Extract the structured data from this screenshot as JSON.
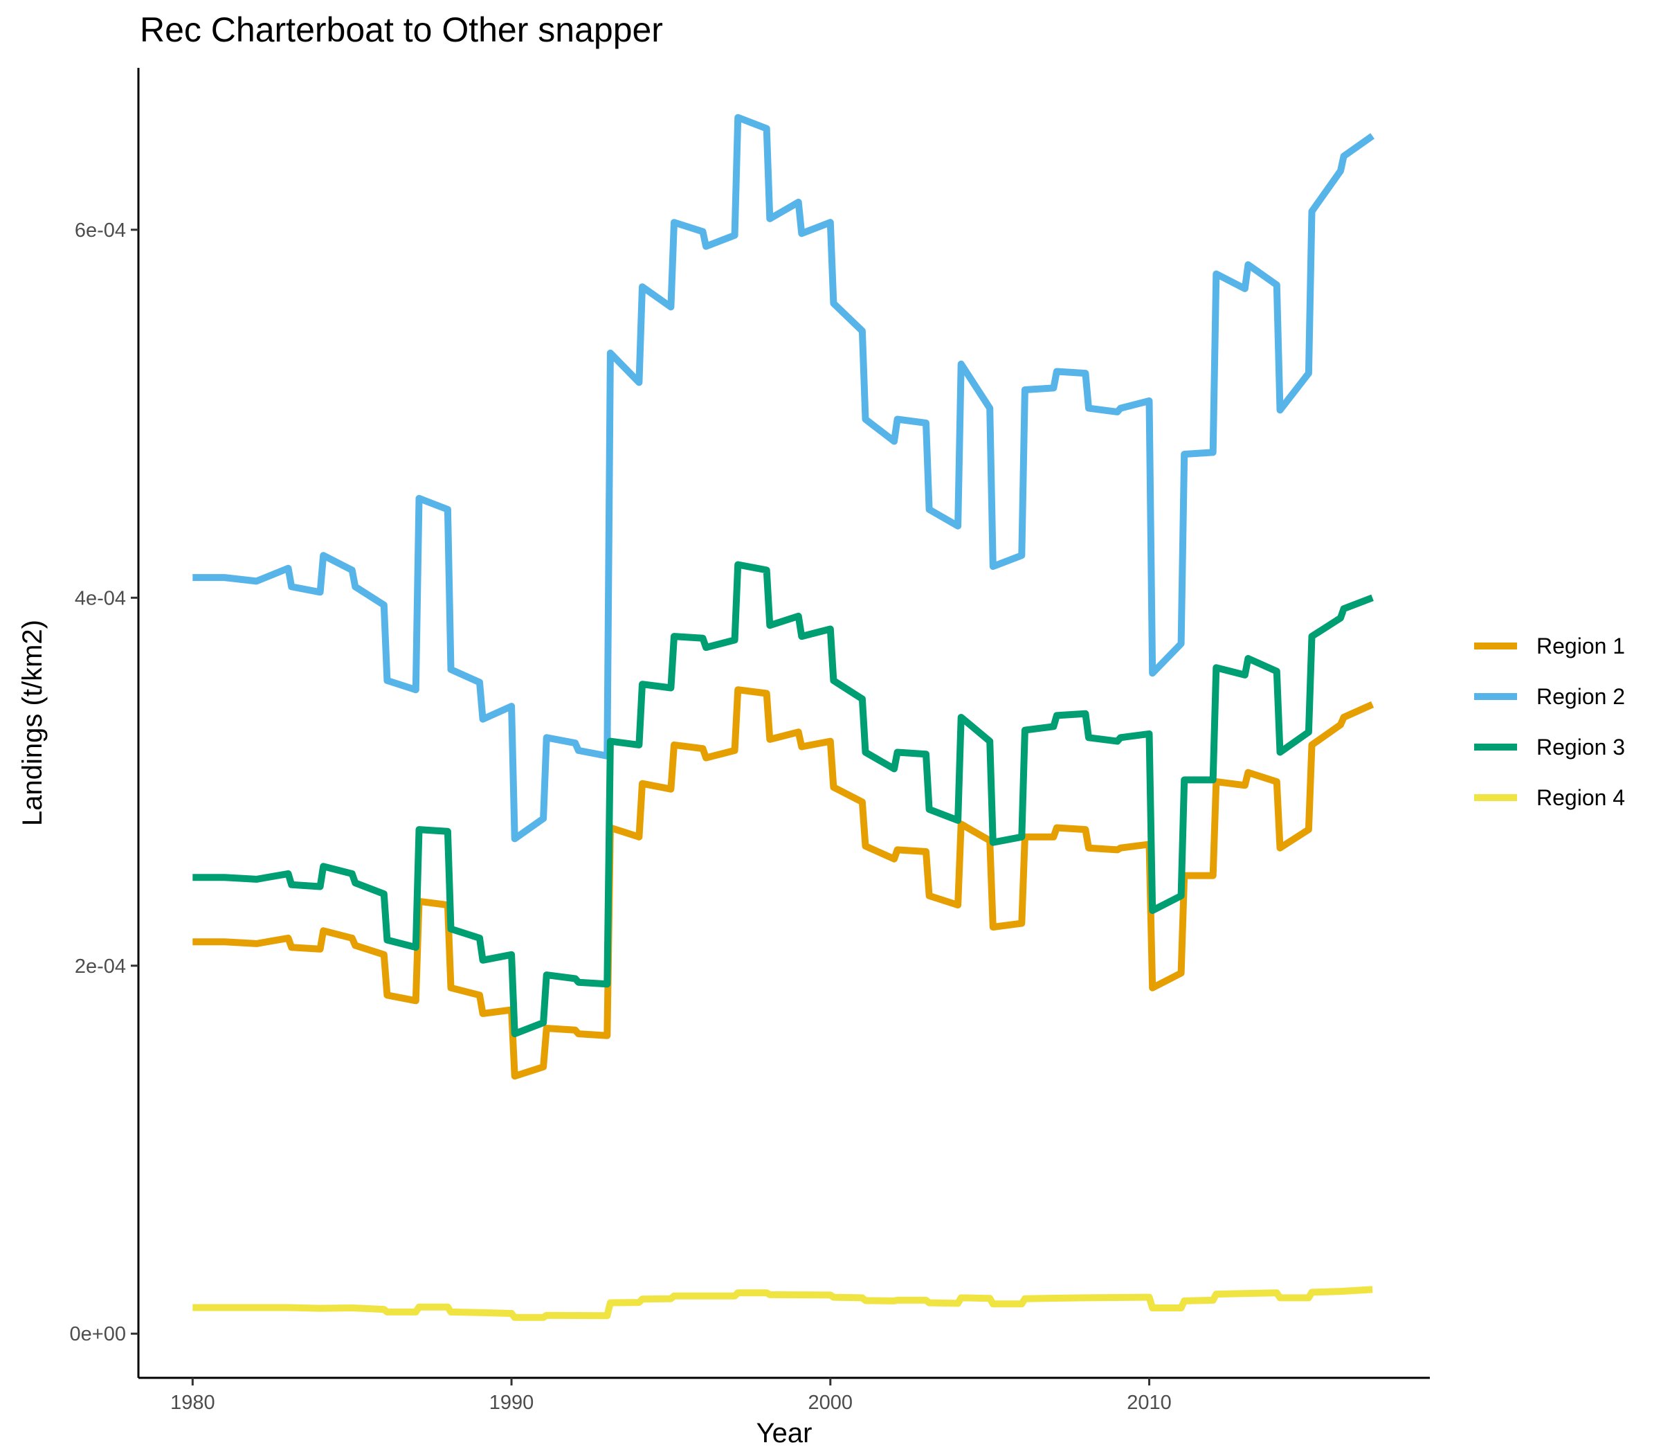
{
  "chart_data": {
    "type": "line",
    "title": "Rec Charterboat to Other snapper",
    "xlabel": "Year",
    "ylabel": "Landings (t/km2)",
    "xlim": [
      1978.3,
      2018.8
    ],
    "ylim": [
      -2.4e-05,
      0.000688
    ],
    "x_ticks": [
      1980,
      1990,
      2000,
      2010
    ],
    "x_tick_labels": [
      "1980",
      "1990",
      "2000",
      "2010"
    ],
    "y_ticks": [
      0,
      0.0002,
      0.0004,
      0.0006
    ],
    "y_tick_labels": [
      "0e+00",
      "2e-04",
      "4e-04",
      "6e-04"
    ],
    "grid": false,
    "legend_position": "right",
    "series": [
      {
        "name": "Region 1",
        "color": "#E69F00",
        "points": [
          [
            1980,
            0.000213
          ],
          [
            1981,
            0.000213
          ],
          [
            1982,
            0.000212
          ],
          [
            1983,
            0.000215
          ],
          [
            1983.1,
            0.00021
          ],
          [
            1984,
            0.000209
          ],
          [
            1984.1,
            0.000219
          ],
          [
            1985,
            0.000215
          ],
          [
            1985.1,
            0.000211
          ],
          [
            1986,
            0.000206
          ],
          [
            1986.1,
            0.000184
          ],
          [
            1987,
            0.000181
          ],
          [
            1987.1,
            0.000235
          ],
          [
            1988,
            0.000233
          ],
          [
            1988.1,
            0.000188
          ],
          [
            1989,
            0.000184
          ],
          [
            1989.1,
            0.000174
          ],
          [
            1990,
            0.000176
          ],
          [
            1990.1,
            0.00014
          ],
          [
            1991,
            0.000145
          ],
          [
            1991.1,
            0.000166
          ],
          [
            1992,
            0.000165
          ],
          [
            1992.1,
            0.000163
          ],
          [
            1993,
            0.000162
          ],
          [
            1993.1,
            0.000275
          ],
          [
            1994,
            0.00027
          ],
          [
            1994.1,
            0.000299
          ],
          [
            1995,
            0.000296
          ],
          [
            1995.1,
            0.00032
          ],
          [
            1996,
            0.000318
          ],
          [
            1996.1,
            0.000313
          ],
          [
            1997,
            0.000317
          ],
          [
            1997.1,
            0.00035
          ],
          [
            1998,
            0.000348
          ],
          [
            1998.1,
            0.000323
          ],
          [
            1999,
            0.000327
          ],
          [
            1999.1,
            0.000319
          ],
          [
            2000,
            0.000322
          ],
          [
            2000.1,
            0.000297
          ],
          [
            2001,
            0.000289
          ],
          [
            2001.1,
            0.000265
          ],
          [
            2002,
            0.000258
          ],
          [
            2002.1,
            0.000263
          ],
          [
            2003,
            0.000262
          ],
          [
            2003.1,
            0.000238
          ],
          [
            2004,
            0.000233
          ],
          [
            2004.1,
            0.000277
          ],
          [
            2005,
            0.000268
          ],
          [
            2005.1,
            0.000221
          ],
          [
            2006,
            0.000223
          ],
          [
            2006.1,
            0.00027
          ],
          [
            2007,
            0.00027
          ],
          [
            2007.1,
            0.000275
          ],
          [
            2008,
            0.000274
          ],
          [
            2008.1,
            0.000264
          ],
          [
            2009,
            0.000263
          ],
          [
            2009.1,
            0.000264
          ],
          [
            2010,
            0.000266
          ],
          [
            2010.1,
            0.000188
          ],
          [
            2011,
            0.000196
          ],
          [
            2011.1,
            0.000249
          ],
          [
            2012,
            0.000249
          ],
          [
            2012.1,
            0.0003
          ],
          [
            2013,
            0.000298
          ],
          [
            2013.1,
            0.000305
          ],
          [
            2014,
            0.0003
          ],
          [
            2014.1,
            0.000264
          ],
          [
            2015,
            0.000274
          ],
          [
            2015.1,
            0.00032
          ],
          [
            2016,
            0.000331
          ],
          [
            2016.1,
            0.000335
          ],
          [
            2017,
            0.000342
          ]
        ]
      },
      {
        "name": "Region 2",
        "color": "#56B4E9",
        "points": [
          [
            1980,
            0.000411
          ],
          [
            1981,
            0.000411
          ],
          [
            1982,
            0.000409
          ],
          [
            1983,
            0.000416
          ],
          [
            1983.1,
            0.000406
          ],
          [
            1984,
            0.000403
          ],
          [
            1984.1,
            0.000423
          ],
          [
            1985,
            0.000415
          ],
          [
            1985.1,
            0.000406
          ],
          [
            1986,
            0.000396
          ],
          [
            1986.1,
            0.000355
          ],
          [
            1987,
            0.00035
          ],
          [
            1987.1,
            0.000454
          ],
          [
            1988,
            0.000448
          ],
          [
            1988.1,
            0.000361
          ],
          [
            1989,
            0.000354
          ],
          [
            1989.1,
            0.000334
          ],
          [
            1990,
            0.000341
          ],
          [
            1990.1,
            0.000269
          ],
          [
            1991,
            0.00028
          ],
          [
            1991.1,
            0.000324
          ],
          [
            1992,
            0.000321
          ],
          [
            1992.1,
            0.000317
          ],
          [
            1993,
            0.000314
          ],
          [
            1993.1,
            0.000533
          ],
          [
            1994,
            0.000517
          ],
          [
            1994.1,
            0.000569
          ],
          [
            1995,
            0.000558
          ],
          [
            1995.1,
            0.000604
          ],
          [
            1996,
            0.000599
          ],
          [
            1996.1,
            0.000591
          ],
          [
            1997,
            0.000597
          ],
          [
            1997.1,
            0.000661
          ],
          [
            1998,
            0.000655
          ],
          [
            1998.1,
            0.000606
          ],
          [
            1999,
            0.000615
          ],
          [
            1999.1,
            0.000598
          ],
          [
            2000,
            0.000604
          ],
          [
            2000.1,
            0.00056
          ],
          [
            2001,
            0.000545
          ],
          [
            2001.1,
            0.000497
          ],
          [
            2002,
            0.000485
          ],
          [
            2002.1,
            0.000497
          ],
          [
            2003,
            0.000495
          ],
          [
            2003.1,
            0.000448
          ],
          [
            2004,
            0.000439
          ],
          [
            2004.1,
            0.000527
          ],
          [
            2005,
            0.000503
          ],
          [
            2005.1,
            0.000417
          ],
          [
            2006,
            0.000423
          ],
          [
            2006.1,
            0.000513
          ],
          [
            2007,
            0.000514
          ],
          [
            2007.1,
            0.000523
          ],
          [
            2008,
            0.000522
          ],
          [
            2008.1,
            0.000503
          ],
          [
            2009,
            0.000501
          ],
          [
            2009.1,
            0.000503
          ],
          [
            2010,
            0.000507
          ],
          [
            2010.1,
            0.000359
          ],
          [
            2011,
            0.000375
          ],
          [
            2011.1,
            0.000478
          ],
          [
            2012,
            0.000479
          ],
          [
            2012.1,
            0.000576
          ],
          [
            2013,
            0.000568
          ],
          [
            2013.1,
            0.000581
          ],
          [
            2014,
            0.00057
          ],
          [
            2014.1,
            0.000502
          ],
          [
            2015,
            0.000522
          ],
          [
            2015.1,
            0.00061
          ],
          [
            2016,
            0.000632
          ],
          [
            2016.1,
            0.00064
          ],
          [
            2017,
            0.000651
          ]
        ]
      },
      {
        "name": "Region 3",
        "color": "#009E73",
        "points": [
          [
            1980,
            0.000248
          ],
          [
            1981,
            0.000248
          ],
          [
            1982,
            0.000247
          ],
          [
            1983,
            0.00025
          ],
          [
            1983.1,
            0.000244
          ],
          [
            1984,
            0.000243
          ],
          [
            1984.1,
            0.000254
          ],
          [
            1985,
            0.00025
          ],
          [
            1985.1,
            0.000245
          ],
          [
            1986,
            0.000239
          ],
          [
            1986.1,
            0.000214
          ],
          [
            1987,
            0.00021
          ],
          [
            1987.1,
            0.000274
          ],
          [
            1988,
            0.000273
          ],
          [
            1988.1,
            0.00022
          ],
          [
            1989,
            0.000215
          ],
          [
            1989.1,
            0.000203
          ],
          [
            1990,
            0.000206
          ],
          [
            1990.1,
            0.000163
          ],
          [
            1991,
            0.000169
          ],
          [
            1991.1,
            0.000195
          ],
          [
            1992,
            0.000193
          ],
          [
            1992.1,
            0.000191
          ],
          [
            1993,
            0.00019
          ],
          [
            1993.1,
            0.000322
          ],
          [
            1994,
            0.00032
          ],
          [
            1994.1,
            0.000353
          ],
          [
            1995,
            0.000351
          ],
          [
            1995.1,
            0.000379
          ],
          [
            1996,
            0.000378
          ],
          [
            1996.1,
            0.000373
          ],
          [
            1997,
            0.000377
          ],
          [
            1997.1,
            0.000418
          ],
          [
            1998,
            0.000415
          ],
          [
            1998.1,
            0.000385
          ],
          [
            1999,
            0.00039
          ],
          [
            1999.1,
            0.000379
          ],
          [
            2000,
            0.000383
          ],
          [
            2000.1,
            0.000355
          ],
          [
            2001,
            0.000345
          ],
          [
            2001.1,
            0.000316
          ],
          [
            2002,
            0.000307
          ],
          [
            2002.1,
            0.000316
          ],
          [
            2003,
            0.000315
          ],
          [
            2003.1,
            0.000285
          ],
          [
            2004,
            0.000279
          ],
          [
            2004.1,
            0.000335
          ],
          [
            2005,
            0.000322
          ],
          [
            2005.1,
            0.000267
          ],
          [
            2006,
            0.00027
          ],
          [
            2006.1,
            0.000328
          ],
          [
            2007,
            0.00033
          ],
          [
            2007.1,
            0.000336
          ],
          [
            2008,
            0.000337
          ],
          [
            2008.1,
            0.000324
          ],
          [
            2009,
            0.000322
          ],
          [
            2009.1,
            0.000324
          ],
          [
            2010,
            0.000326
          ],
          [
            2010.1,
            0.00023
          ],
          [
            2011,
            0.000238
          ],
          [
            2011.1,
            0.000301
          ],
          [
            2012,
            0.000301
          ],
          [
            2012.1,
            0.000362
          ],
          [
            2013,
            0.000358
          ],
          [
            2013.1,
            0.000367
          ],
          [
            2014,
            0.00036
          ],
          [
            2014.1,
            0.000316
          ],
          [
            2015,
            0.000327
          ],
          [
            2015.1,
            0.000379
          ],
          [
            2016,
            0.000389
          ],
          [
            2016.1,
            0.000394
          ],
          [
            2017,
            0.0004
          ]
        ]
      },
      {
        "name": "Region 4",
        "color": "#F0E442",
        "points": [
          [
            1980,
            1.42e-05
          ],
          [
            1983,
            1.42e-05
          ],
          [
            1984,
            1.38e-05
          ],
          [
            1985,
            1.4e-05
          ],
          [
            1986,
            1.32e-05
          ],
          [
            1986.1,
            1.18e-05
          ],
          [
            1987,
            1.18e-05
          ],
          [
            1987.1,
            1.45e-05
          ],
          [
            1988,
            1.45e-05
          ],
          [
            1988.1,
            1.18e-05
          ],
          [
            1989,
            1.15e-05
          ],
          [
            1990,
            1.1e-05
          ],
          [
            1990.1,
            8.8e-06
          ],
          [
            1991,
            8.8e-06
          ],
          [
            1991.1,
            1e-05
          ],
          [
            1993,
            9.8e-06
          ],
          [
            1993.1,
            1.68e-05
          ],
          [
            1994,
            1.7e-05
          ],
          [
            1994.1,
            1.88e-05
          ],
          [
            1995,
            1.9e-05
          ],
          [
            1995.1,
            2.05e-05
          ],
          [
            1997,
            2.05e-05
          ],
          [
            1997.1,
            2.22e-05
          ],
          [
            1998,
            2.22e-05
          ],
          [
            1998.1,
            2.12e-05
          ],
          [
            2000,
            2.1e-05
          ],
          [
            2000.1,
            1.98e-05
          ],
          [
            2001,
            1.95e-05
          ],
          [
            2001.1,
            1.8e-05
          ],
          [
            2002,
            1.78e-05
          ],
          [
            2002.1,
            1.82e-05
          ],
          [
            2003,
            1.82e-05
          ],
          [
            2003.1,
            1.68e-05
          ],
          [
            2004,
            1.65e-05
          ],
          [
            2004.1,
            1.95e-05
          ],
          [
            2005,
            1.92e-05
          ],
          [
            2005.1,
            1.62e-05
          ],
          [
            2006,
            1.62e-05
          ],
          [
            2006.1,
            1.9e-05
          ],
          [
            2008,
            1.95e-05
          ],
          [
            2010,
            1.98e-05
          ],
          [
            2010.1,
            1.4e-05
          ],
          [
            2011,
            1.4e-05
          ],
          [
            2011.1,
            1.78e-05
          ],
          [
            2012,
            1.82e-05
          ],
          [
            2012.1,
            2.15e-05
          ],
          [
            2014,
            2.22e-05
          ],
          [
            2014.1,
            1.95e-05
          ],
          [
            2015,
            1.95e-05
          ],
          [
            2015.1,
            2.25e-05
          ],
          [
            2016,
            2.3e-05
          ],
          [
            2017,
            2.4e-05
          ]
        ]
      }
    ]
  }
}
